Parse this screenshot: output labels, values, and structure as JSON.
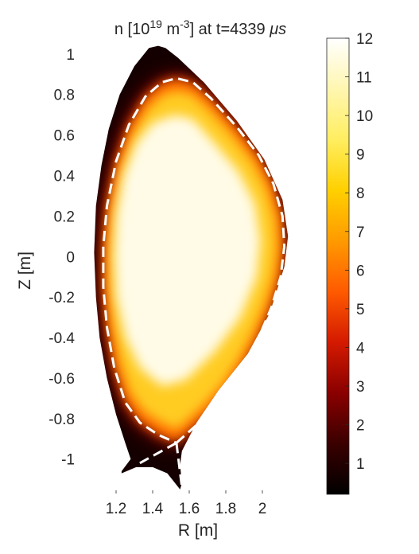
{
  "chart_data": {
    "type": "heatmap",
    "title_parts": {
      "prefix": "n [10",
      "exp1": "19",
      "mid": " m",
      "exp2": "-3",
      "suffix": "] at t=4339 ",
      "unit": "μs"
    },
    "xlabel": "R [m]",
    "ylabel": "Z [m]",
    "xlim": [
      1.0,
      2.3
    ],
    "ylim": [
      -1.17,
      1.07
    ],
    "xticks": [
      1.2,
      1.4,
      1.6,
      1.8,
      2.0
    ],
    "xtick_labels": [
      "1.2",
      "1.4",
      "1.6",
      "1.8",
      "2"
    ],
    "yticks": [
      1.0,
      0.8,
      0.6,
      0.4,
      0.2,
      0.0,
      -0.2,
      -0.4,
      -0.6,
      -0.8,
      -1.0
    ],
    "ytick_labels": [
      "1",
      "0.8",
      "0.6",
      "0.4",
      "0.2",
      "0",
      "-0.2",
      "-0.4",
      "-0.6",
      "-0.8",
      "-1"
    ],
    "colorbar": {
      "range": [
        0.2,
        12
      ],
      "ticks": [
        1,
        2,
        3,
        4,
        5,
        6,
        7,
        8,
        9,
        10,
        11,
        12
      ],
      "tick_labels": [
        "1",
        "2",
        "3",
        "4",
        "5",
        "6",
        "7",
        "8",
        "9",
        "10",
        "11",
        "12"
      ],
      "colormap": [
        "#000000",
        "#3a0000",
        "#8a0000",
        "#d41a00",
        "#ff5a00",
        "#ff9a00",
        "#ffd000",
        "#ffee60",
        "#fff6b0",
        "#ffffff"
      ]
    },
    "grid": false,
    "separatrix_style": "white-dashed",
    "outer_boundary": [
      [
        1.43,
        1.04
      ],
      [
        1.38,
        1.03
      ],
      [
        1.3,
        0.94
      ],
      [
        1.22,
        0.8
      ],
      [
        1.16,
        0.63
      ],
      [
        1.12,
        0.45
      ],
      [
        1.09,
        0.25
      ],
      [
        1.08,
        0.02
      ],
      [
        1.09,
        -0.2
      ],
      [
        1.11,
        -0.4
      ],
      [
        1.15,
        -0.6
      ],
      [
        1.2,
        -0.78
      ],
      [
        1.25,
        -0.92
      ],
      [
        1.28,
        -1.0
      ],
      [
        1.23,
        -1.06
      ],
      [
        1.23,
        -1.07
      ],
      [
        1.31,
        -1.04
      ],
      [
        1.4,
        -1.04
      ],
      [
        1.48,
        -1.07
      ],
      [
        1.55,
        -1.15
      ],
      [
        1.56,
        -1.12
      ],
      [
        1.55,
        -1.03
      ],
      [
        1.56,
        -0.96
      ],
      [
        1.64,
        -0.82
      ],
      [
        1.76,
        -0.66
      ],
      [
        1.92,
        -0.48
      ],
      [
        2.04,
        -0.28
      ],
      [
        2.12,
        -0.05
      ],
      [
        2.14,
        0.1
      ],
      [
        2.11,
        0.28
      ],
      [
        2.01,
        0.48
      ],
      [
        1.86,
        0.67
      ],
      [
        1.68,
        0.86
      ],
      [
        1.54,
        0.98
      ],
      [
        1.47,
        1.03
      ]
    ],
    "plasma_core": [
      [
        1.52,
        0.7
      ],
      [
        1.4,
        0.66
      ],
      [
        1.31,
        0.56
      ],
      [
        1.24,
        0.4
      ],
      [
        1.2,
        0.2
      ],
      [
        1.19,
        0.0
      ],
      [
        1.2,
        -0.2
      ],
      [
        1.25,
        -0.4
      ],
      [
        1.33,
        -0.55
      ],
      [
        1.45,
        -0.64
      ],
      [
        1.58,
        -0.61
      ],
      [
        1.74,
        -0.47
      ],
      [
        1.88,
        -0.3
      ],
      [
        1.97,
        -0.1
      ],
      [
        1.99,
        0.08
      ],
      [
        1.96,
        0.26
      ],
      [
        1.87,
        0.42
      ],
      [
        1.73,
        0.57
      ],
      [
        1.62,
        0.68
      ]
    ],
    "separatrix": [
      [
        1.53,
        -0.92
      ],
      [
        1.68,
        -0.8
      ],
      [
        1.8,
        -0.68
      ],
      [
        1.9,
        -0.54
      ],
      [
        1.98,
        -0.4
      ],
      [
        2.05,
        -0.25
      ],
      [
        2.1,
        -0.1
      ],
      [
        2.12,
        0.05
      ],
      [
        2.11,
        0.2
      ],
      [
        2.06,
        0.36
      ],
      [
        1.98,
        0.5
      ],
      [
        1.86,
        0.64
      ],
      [
        1.72,
        0.78
      ],
      [
        1.62,
        0.86
      ],
      [
        1.53,
        0.88
      ],
      [
        1.45,
        0.86
      ],
      [
        1.36,
        0.79
      ],
      [
        1.27,
        0.65
      ],
      [
        1.2,
        0.47
      ],
      [
        1.15,
        0.25
      ],
      [
        1.13,
        0.05
      ],
      [
        1.13,
        -0.15
      ],
      [
        1.15,
        -0.35
      ],
      [
        1.19,
        -0.55
      ],
      [
        1.25,
        -0.72
      ],
      [
        1.33,
        -0.82
      ],
      [
        1.43,
        -0.88
      ],
      [
        1.53,
        -0.92
      ]
    ],
    "separatrix_legs": [
      [
        [
          1.53,
          -0.92
        ],
        [
          1.56,
          -1.14
        ]
      ],
      [
        [
          1.53,
          -0.92
        ],
        [
          1.33,
          -1.02
        ]
      ]
    ]
  }
}
